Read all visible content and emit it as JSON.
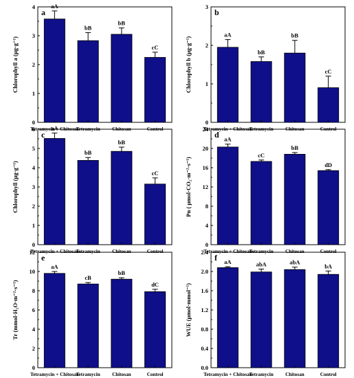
{
  "colors": {
    "bar": "#0f0f8a",
    "bar_stroke": "#000000",
    "axis": "#000000"
  },
  "chart_data": [
    {
      "type": "bar",
      "panel": "a",
      "categories": [
        "Tetramycin + Chitosan",
        "Tetramycin",
        "Chitosan",
        "Control"
      ],
      "values": [
        3.58,
        2.83,
        3.05,
        2.25
      ],
      "errors": [
        0.28,
        0.28,
        0.22,
        0.18
      ],
      "labels": [
        "aA",
        "bB",
        "bB",
        "cC"
      ],
      "ylabel": "Chlorophyll a (μg·g⁻¹)",
      "ylim": [
        0,
        4
      ],
      "yticks": [
        0,
        1,
        2,
        3,
        4
      ],
      "tick_decimals": 0
    },
    {
      "type": "bar",
      "panel": "b",
      "categories": [
        "Tetramycin + Chitosan",
        "Tetramycin",
        "Chitosan",
        "Control"
      ],
      "values": [
        1.95,
        1.58,
        1.8,
        0.9
      ],
      "errors": [
        0.2,
        0.12,
        0.33,
        0.3
      ],
      "labels": [
        "aA",
        "bB",
        "bB",
        "cC"
      ],
      "ylabel": "Chlorophyll b (μg·g⁻¹)",
      "ylim": [
        0,
        3
      ],
      "yticks": [
        0,
        1,
        2,
        3
      ],
      "tick_decimals": 0
    },
    {
      "type": "bar",
      "panel": "c",
      "categories": [
        "Tetramycin + Chitosan",
        "Tetramycin",
        "Chitosan",
        "Control"
      ],
      "values": [
        5.52,
        4.38,
        4.85,
        3.15
      ],
      "errors": [
        0.28,
        0.15,
        0.22,
        0.32
      ],
      "labels": [
        "aA",
        "bB",
        "bB",
        "cC"
      ],
      "ylabel": "Chlorophyll (μg·g⁻¹)",
      "ylim": [
        0,
        6
      ],
      "yticks": [
        0,
        1,
        2,
        3,
        4,
        5,
        6
      ],
      "tick_decimals": 0
    },
    {
      "type": "bar",
      "panel": "d",
      "categories": [
        "Tetramycin + Chitosan",
        "Tetramycin",
        "Chitosan",
        "Control"
      ],
      "values": [
        20.3,
        17.3,
        18.8,
        15.4
      ],
      "errors": [
        0.6,
        0.3,
        0.35,
        0.2
      ],
      "labels": [
        "aA",
        "cC",
        "bB",
        "dD"
      ],
      "ylabel": "Pn ( μmol·CO₂·m⁻²·s⁻¹)",
      "ylim": [
        0,
        24
      ],
      "yticks": [
        0,
        4,
        8,
        12,
        16,
        20,
        24
      ],
      "tick_decimals": 0
    },
    {
      "type": "bar",
      "panel": "e",
      "categories": [
        "Tetramycin + Chitosan",
        "Tetramycin",
        "Chitosan",
        "Control"
      ],
      "values": [
        9.8,
        8.7,
        9.2,
        7.9
      ],
      "errors": [
        0.2,
        0.15,
        0.15,
        0.25
      ],
      "labels": [
        "aA",
        "cB",
        "bB",
        "dC"
      ],
      "ylabel": "Tr (mmol·H₂O·m⁻²·s⁻¹)",
      "ylim": [
        0,
        12
      ],
      "yticks": [
        0,
        2,
        4,
        6,
        8,
        10,
        12
      ],
      "tick_decimals": 0
    },
    {
      "type": "bar",
      "panel": "f",
      "categories": [
        "Tetramycin + Chitosan",
        "Tetramycin",
        "Chitosan",
        "Control"
      ],
      "values": [
        2.08,
        1.99,
        2.04,
        1.94
      ],
      "errors": [
        0.02,
        0.06,
        0.05,
        0.07
      ],
      "labels": [
        "aA",
        "abA",
        "abA",
        "bA"
      ],
      "ylabel": "WUE (μmol·mmol⁻¹)",
      "ylim": [
        0,
        2.4
      ],
      "yticks": [
        0,
        0.4,
        0.8,
        1.2,
        1.6,
        2.0,
        2.4
      ],
      "tick_decimals": 1
    }
  ]
}
